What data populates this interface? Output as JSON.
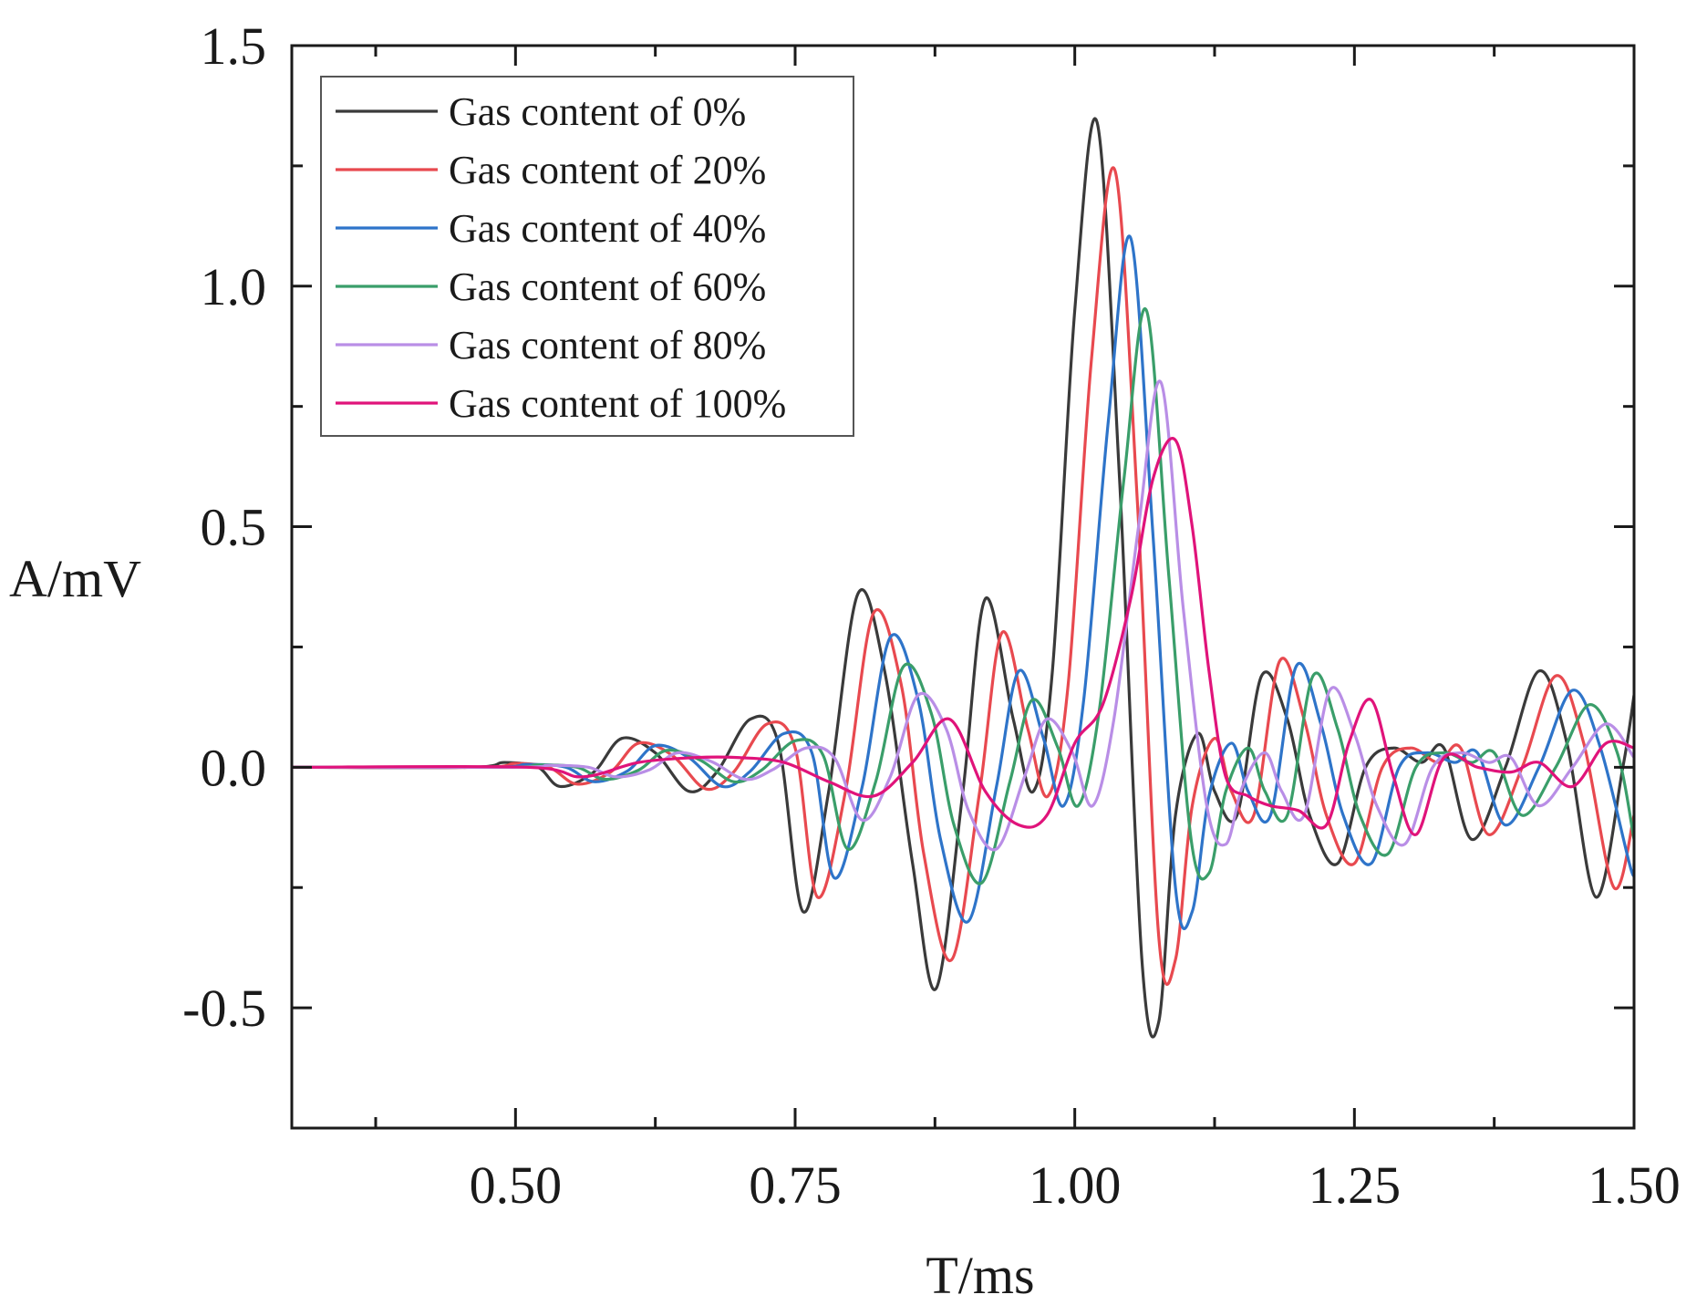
{
  "chart_data": {
    "type": "line",
    "title": "",
    "xlabel": "T/ms",
    "ylabel": "A/mV",
    "xlim": [
      0.3,
      1.5
    ],
    "ylim": [
      -0.75,
      1.5
    ],
    "xticks": [
      0.5,
      0.75,
      1.0,
      1.25,
      1.5
    ],
    "xtick_labels": [
      "0.50",
      "0.75",
      "1.00",
      "1.25",
      "1.50"
    ],
    "yticks": [
      -0.5,
      0.0,
      0.5,
      1.0,
      1.5
    ],
    "ytick_labels": [
      "-0.5",
      "0.0",
      "0.5",
      "1.0",
      "1.5"
    ],
    "grid": false,
    "legend_position": "top-left",
    "series": [
      {
        "name": "Gas content of 0%",
        "color": "#3a3a3a",
        "x": [
          0.3,
          0.46,
          0.49,
          0.52,
          0.54,
          0.57,
          0.595,
          0.625,
          0.655,
          0.68,
          0.71,
          0.735,
          0.757,
          0.78,
          0.806,
          0.83,
          0.855,
          0.876,
          0.9,
          0.92,
          0.945,
          0.963,
          0.98,
          1.0,
          1.02,
          1.04,
          1.06,
          1.075,
          1.09,
          1.11,
          1.125,
          1.145,
          1.167,
          1.19,
          1.21,
          1.235,
          1.26,
          1.285,
          1.31,
          1.33,
          1.355,
          1.385,
          1.415,
          1.44,
          1.466,
          1.49,
          1.5
        ],
        "y": [
          0,
          0,
          0.01,
          0,
          -0.04,
          -0.01,
          0.06,
          0.03,
          -0.05,
          -0.01,
          0.1,
          0.05,
          -0.3,
          -0.05,
          0.36,
          0.2,
          -0.2,
          -0.46,
          -0.05,
          0.35,
          0.1,
          -0.05,
          0.2,
          0.95,
          1.34,
          0.6,
          -0.4,
          -0.53,
          -0.1,
          0.07,
          -0.05,
          -0.1,
          0.19,
          0.1,
          -0.1,
          -0.2,
          0,
          0.04,
          0.01,
          0.04,
          -0.15,
          0,
          0.2,
          0.05,
          -0.27,
          0,
          0.15
        ]
      },
      {
        "name": "Gas content of 20%",
        "color": "#e8494f",
        "x": [
          0.3,
          0.47,
          0.5,
          0.53,
          0.555,
          0.585,
          0.61,
          0.64,
          0.67,
          0.695,
          0.725,
          0.75,
          0.77,
          0.795,
          0.82,
          0.845,
          0.865,
          0.89,
          0.915,
          0.935,
          0.958,
          0.976,
          0.994,
          1.015,
          1.036,
          1.056,
          1.075,
          1.09,
          1.105,
          1.125,
          1.14,
          1.16,
          1.183,
          1.205,
          1.225,
          1.25,
          1.275,
          1.3,
          1.325,
          1.345,
          1.37,
          1.4,
          1.43,
          1.455,
          1.482,
          1.5
        ],
        "y": [
          0,
          0,
          0.008,
          0,
          -0.035,
          -0.01,
          0.05,
          0.025,
          -0.045,
          -0.01,
          0.09,
          0.04,
          -0.27,
          -0.05,
          0.32,
          0.17,
          -0.18,
          -0.4,
          -0.05,
          0.28,
          0.08,
          -0.06,
          0.17,
          0.85,
          1.24,
          0.55,
          -0.35,
          -0.4,
          -0.08,
          0.06,
          -0.05,
          -0.1,
          0.22,
          0.1,
          -0.1,
          -0.2,
          0,
          0.04,
          0.01,
          0.04,
          -0.14,
          0,
          0.19,
          0.05,
          -0.25,
          -0.1
        ]
      },
      {
        "name": "Gas content of 40%",
        "color": "#2e74c9",
        "x": [
          0.3,
          0.48,
          0.51,
          0.545,
          0.57,
          0.6,
          0.625,
          0.655,
          0.685,
          0.71,
          0.74,
          0.765,
          0.785,
          0.81,
          0.835,
          0.86,
          0.88,
          0.905,
          0.93,
          0.95,
          0.972,
          0.99,
          1.008,
          1.03,
          1.05,
          1.07,
          1.09,
          1.105,
          1.12,
          1.14,
          1.155,
          1.175,
          1.198,
          1.22,
          1.24,
          1.265,
          1.29,
          1.315,
          1.34,
          1.36,
          1.385,
          1.415,
          1.445,
          1.47,
          1.497,
          1.5
        ],
        "y": [
          0,
          0,
          0.006,
          0,
          -0.03,
          -0.008,
          0.045,
          0.02,
          -0.04,
          -0.008,
          0.07,
          0.03,
          -0.23,
          -0.04,
          0.27,
          0.14,
          -0.15,
          -0.32,
          -0.04,
          0.2,
          0.06,
          -0.08,
          0.14,
          0.72,
          1.1,
          0.48,
          -0.25,
          -0.3,
          -0.06,
          0.05,
          -0.05,
          -0.1,
          0.21,
          0.09,
          -0.1,
          -0.2,
          0,
          0.03,
          0.01,
          0.03,
          -0.12,
          0,
          0.16,
          0.04,
          -0.21,
          -0.2
        ]
      },
      {
        "name": "Gas content of 60%",
        "color": "#3a9e6a",
        "x": [
          0.3,
          0.49,
          0.52,
          0.555,
          0.58,
          0.61,
          0.635,
          0.665,
          0.695,
          0.72,
          0.75,
          0.775,
          0.797,
          0.822,
          0.847,
          0.872,
          0.892,
          0.917,
          0.942,
          0.962,
          0.985,
          1.003,
          1.022,
          1.044,
          1.064,
          1.084,
          1.104,
          1.12,
          1.135,
          1.155,
          1.17,
          1.19,
          1.213,
          1.235,
          1.255,
          1.28,
          1.305,
          1.33,
          1.355,
          1.375,
          1.4,
          1.43,
          1.46,
          1.485,
          1.5
        ],
        "y": [
          0,
          0,
          0.005,
          0,
          -0.025,
          -0.006,
          0.035,
          0.015,
          -0.03,
          -0.006,
          0.055,
          0.025,
          -0.17,
          -0.03,
          0.21,
          0.11,
          -0.12,
          -0.24,
          -0.03,
          0.14,
          0.04,
          -0.08,
          0.12,
          0.6,
          0.95,
          0.4,
          -0.15,
          -0.22,
          -0.05,
          0.04,
          -0.05,
          -0.1,
          0.19,
          0.08,
          -0.1,
          -0.18,
          0,
          0.03,
          0.01,
          0.03,
          -0.1,
          0,
          0.13,
          0.03,
          -0.15
        ]
      },
      {
        "name": "Gas content of 80%",
        "color": "#b98ee6",
        "x": [
          0.3,
          0.5,
          0.53,
          0.565,
          0.59,
          0.62,
          0.645,
          0.675,
          0.705,
          0.73,
          0.76,
          0.785,
          0.81,
          0.835,
          0.86,
          0.885,
          0.905,
          0.93,
          0.955,
          0.975,
          0.998,
          1.016,
          1.035,
          1.057,
          1.077,
          1.097,
          1.118,
          1.135,
          1.15,
          1.17,
          1.185,
          1.205,
          1.228,
          1.25,
          1.27,
          1.295,
          1.32,
          1.345,
          1.37,
          1.39,
          1.415,
          1.445,
          1.475,
          1.5
        ],
        "y": [
          0,
          0,
          0.004,
          0,
          -0.02,
          -0.005,
          0.03,
          0.012,
          -0.025,
          -0.005,
          0.04,
          0.02,
          -0.11,
          -0.02,
          0.15,
          0.08,
          -0.09,
          -0.17,
          -0.02,
          0.1,
          0.03,
          -0.08,
          0.1,
          0.5,
          0.8,
          0.33,
          -0.08,
          -0.16,
          -0.04,
          0.03,
          -0.05,
          -0.1,
          0.16,
          0.07,
          -0.08,
          -0.16,
          0,
          0.03,
          0.01,
          0.02,
          -0.08,
          0,
          0.09,
          0.02
        ]
      },
      {
        "name": "Gas content of 100%",
        "color": "#e0137a",
        "x": [
          0.3,
          0.51,
          0.56,
          0.61,
          0.66,
          0.7,
          0.74,
          0.78,
          0.82,
          0.855,
          0.888,
          0.92,
          0.95,
          0.975,
          1.0,
          1.025,
          1.05,
          1.07,
          1.09,
          1.105,
          1.12,
          1.135,
          1.155,
          1.175,
          1.2,
          1.225,
          1.245,
          1.265,
          1.285,
          1.305,
          1.33,
          1.36,
          1.39,
          1.415,
          1.445,
          1.475,
          1.5
        ],
        "y": [
          0,
          0,
          -0.02,
          0.01,
          0.02,
          0.02,
          0.01,
          -0.03,
          -0.06,
          0.01,
          0.1,
          -0.05,
          -0.12,
          -0.1,
          0.05,
          0.13,
          0.35,
          0.6,
          0.68,
          0.5,
          0.2,
          -0.02,
          -0.06,
          -0.08,
          -0.09,
          -0.12,
          0.05,
          0.14,
          -0.02,
          -0.14,
          0.02,
          0.0,
          -0.01,
          0.01,
          -0.04,
          0.05,
          0.04
        ]
      }
    ]
  }
}
